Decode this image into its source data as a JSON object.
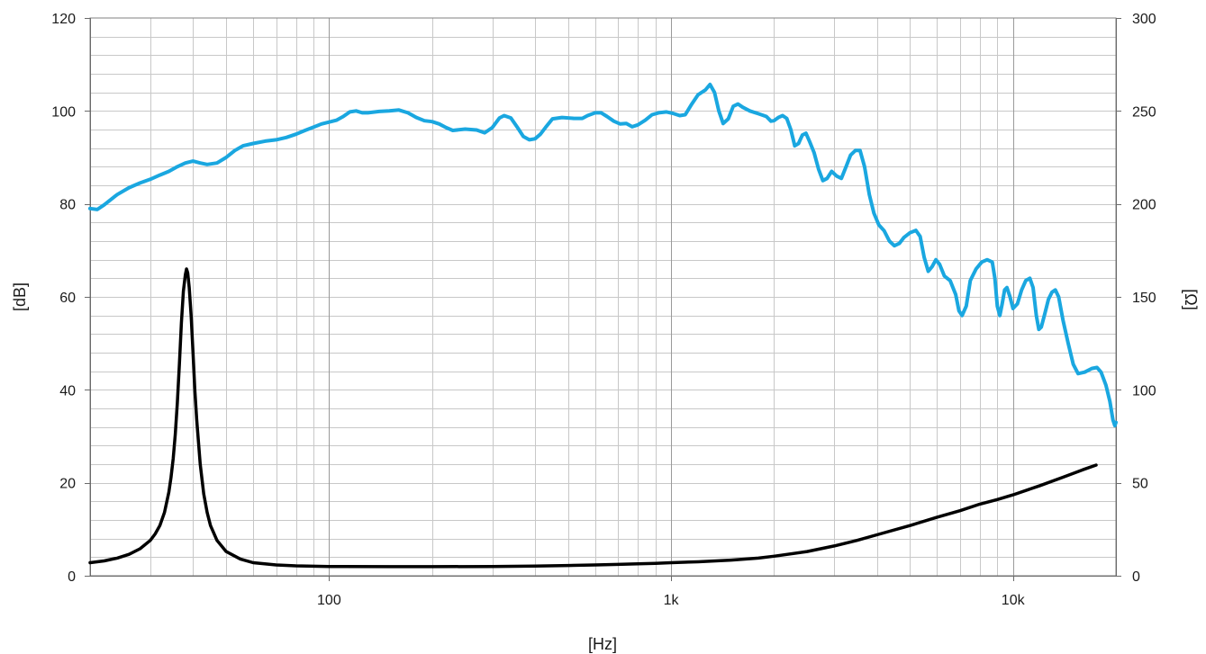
{
  "chart_data": {
    "type": "line",
    "x_scale": "log",
    "xlim": [
      20,
      20000
    ],
    "ylim_left": [
      0,
      120
    ],
    "ylim_right": [
      0,
      300
    ],
    "grid": true,
    "xlabel": "[Hz]",
    "ylabel_left": "[dB]",
    "ylabel_right": "[Ω]",
    "x_ticks": [
      {
        "v": 100,
        "label": "100"
      },
      {
        "v": 1000,
        "label": "1k"
      },
      {
        "v": 10000,
        "label": "10k"
      }
    ],
    "y_ticks_left": [
      0,
      20,
      40,
      60,
      80,
      100,
      120
    ],
    "y_ticks_right": [
      0,
      50,
      100,
      150,
      200,
      250,
      300
    ],
    "series": [
      {
        "axis": "left",
        "color": "#1aa7e0",
        "points": [
          [
            20,
            79.0
          ],
          [
            21,
            78.8
          ],
          [
            22,
            79.8
          ],
          [
            24,
            82.0
          ],
          [
            26,
            83.5
          ],
          [
            28,
            84.5
          ],
          [
            30,
            85.3
          ],
          [
            32,
            86.2
          ],
          [
            34,
            87.0
          ],
          [
            36,
            88.0
          ],
          [
            38,
            88.8
          ],
          [
            40,
            89.2
          ],
          [
            42,
            88.8
          ],
          [
            44,
            88.5
          ],
          [
            47,
            88.8
          ],
          [
            50,
            90.0
          ],
          [
            53,
            91.5
          ],
          [
            56,
            92.5
          ],
          [
            60,
            93.0
          ],
          [
            65,
            93.5
          ],
          [
            70,
            93.8
          ],
          [
            75,
            94.3
          ],
          [
            80,
            95.0
          ],
          [
            85,
            95.8
          ],
          [
            90,
            96.5
          ],
          [
            95,
            97.2
          ],
          [
            100,
            97.6
          ],
          [
            105,
            98.0
          ],
          [
            110,
            98.8
          ],
          [
            115,
            99.8
          ],
          [
            120,
            100.0
          ],
          [
            125,
            99.6
          ],
          [
            130,
            99.6
          ],
          [
            140,
            99.9
          ],
          [
            150,
            100.0
          ],
          [
            160,
            100.2
          ],
          [
            170,
            99.6
          ],
          [
            180,
            98.6
          ],
          [
            190,
            97.9
          ],
          [
            200,
            97.7
          ],
          [
            210,
            97.2
          ],
          [
            220,
            96.4
          ],
          [
            230,
            95.8
          ],
          [
            250,
            96.1
          ],
          [
            270,
            95.9
          ],
          [
            285,
            95.3
          ],
          [
            300,
            96.4
          ],
          [
            315,
            98.5
          ],
          [
            325,
            99.0
          ],
          [
            340,
            98.5
          ],
          [
            355,
            96.5
          ],
          [
            370,
            94.5
          ],
          [
            385,
            93.8
          ],
          [
            400,
            94.0
          ],
          [
            415,
            95.0
          ],
          [
            430,
            96.5
          ],
          [
            450,
            98.3
          ],
          [
            480,
            98.6
          ],
          [
            520,
            98.4
          ],
          [
            550,
            98.4
          ],
          [
            570,
            99.0
          ],
          [
            600,
            99.6
          ],
          [
            625,
            99.6
          ],
          [
            650,
            98.8
          ],
          [
            680,
            97.8
          ],
          [
            710,
            97.2
          ],
          [
            740,
            97.3
          ],
          [
            770,
            96.6
          ],
          [
            800,
            97.0
          ],
          [
            840,
            98.0
          ],
          [
            880,
            99.2
          ],
          [
            920,
            99.6
          ],
          [
            970,
            99.8
          ],
          [
            1010,
            99.5
          ],
          [
            1060,
            99.0
          ],
          [
            1100,
            99.2
          ],
          [
            1150,
            101.5
          ],
          [
            1200,
            103.5
          ],
          [
            1260,
            104.5
          ],
          [
            1300,
            105.7
          ],
          [
            1340,
            104.0
          ],
          [
            1380,
            100.0
          ],
          [
            1420,
            97.3
          ],
          [
            1470,
            98.3
          ],
          [
            1520,
            101.0
          ],
          [
            1570,
            101.5
          ],
          [
            1620,
            100.8
          ],
          [
            1700,
            100.0
          ],
          [
            1800,
            99.4
          ],
          [
            1900,
            98.8
          ],
          [
            1960,
            97.8
          ],
          [
            2000,
            97.9
          ],
          [
            2060,
            98.6
          ],
          [
            2120,
            99.0
          ],
          [
            2180,
            98.4
          ],
          [
            2240,
            96.0
          ],
          [
            2300,
            92.5
          ],
          [
            2360,
            93.0
          ],
          [
            2420,
            94.8
          ],
          [
            2480,
            95.2
          ],
          [
            2540,
            93.5
          ],
          [
            2620,
            91.0
          ],
          [
            2700,
            87.5
          ],
          [
            2780,
            85.0
          ],
          [
            2860,
            85.5
          ],
          [
            2950,
            87.0
          ],
          [
            3050,
            86.0
          ],
          [
            3150,
            85.5
          ],
          [
            3250,
            88.0
          ],
          [
            3350,
            90.5
          ],
          [
            3460,
            91.5
          ],
          [
            3570,
            91.5
          ],
          [
            3680,
            88.0
          ],
          [
            3800,
            82.0
          ],
          [
            3920,
            78.0
          ],
          [
            4050,
            75.5
          ],
          [
            4200,
            74.2
          ],
          [
            4350,
            72.0
          ],
          [
            4500,
            71.0
          ],
          [
            4650,
            71.5
          ],
          [
            4800,
            72.8
          ],
          [
            5000,
            73.8
          ],
          [
            5200,
            74.3
          ],
          [
            5350,
            73.0
          ],
          [
            5500,
            68.5
          ],
          [
            5650,
            65.5
          ],
          [
            5800,
            66.5
          ],
          [
            5950,
            68.0
          ],
          [
            6100,
            67.0
          ],
          [
            6300,
            64.5
          ],
          [
            6550,
            63.5
          ],
          [
            6800,
            60.5
          ],
          [
            6950,
            57.0
          ],
          [
            7100,
            56.0
          ],
          [
            7300,
            58.0
          ],
          [
            7500,
            63.5
          ],
          [
            7800,
            66.0
          ],
          [
            8100,
            67.5
          ],
          [
            8400,
            68.0
          ],
          [
            8700,
            67.5
          ],
          [
            8850,
            64.0
          ],
          [
            9000,
            58.0
          ],
          [
            9150,
            56.0
          ],
          [
            9300,
            58.5
          ],
          [
            9450,
            61.5
          ],
          [
            9600,
            62.0
          ],
          [
            9800,
            60.0
          ],
          [
            10000,
            57.5
          ],
          [
            10300,
            58.5
          ],
          [
            10600,
            61.5
          ],
          [
            10900,
            63.5
          ],
          [
            11200,
            64.0
          ],
          [
            11450,
            62.0
          ],
          [
            11700,
            56.0
          ],
          [
            11900,
            53.0
          ],
          [
            12100,
            53.5
          ],
          [
            12400,
            56.5
          ],
          [
            12700,
            59.5
          ],
          [
            13000,
            61.0
          ],
          [
            13300,
            61.5
          ],
          [
            13600,
            60.0
          ],
          [
            14000,
            55.0
          ],
          [
            14500,
            50.0
          ],
          [
            15000,
            45.5
          ],
          [
            15500,
            43.5
          ],
          [
            16200,
            43.8
          ],
          [
            17000,
            44.6
          ],
          [
            17600,
            44.8
          ],
          [
            18100,
            43.8
          ],
          [
            18700,
            41.0
          ],
          [
            19200,
            37.5
          ],
          [
            19600,
            33.5
          ],
          [
            19850,
            32.3
          ],
          [
            20000,
            33.0
          ]
        ]
      },
      {
        "axis": "right",
        "color": "#000000",
        "points": [
          [
            20,
            7.0
          ],
          [
            22,
            8.0
          ],
          [
            24,
            9.5
          ],
          [
            26,
            11.5
          ],
          [
            28,
            14.5
          ],
          [
            30,
            19.0
          ],
          [
            31,
            22.5
          ],
          [
            32,
            27.0
          ],
          [
            33,
            34.0
          ],
          [
            34,
            45.0
          ],
          [
            34.5,
            53.0
          ],
          [
            35,
            63.0
          ],
          [
            35.5,
            76.0
          ],
          [
            36,
            93.0
          ],
          [
            36.5,
            114.0
          ],
          [
            37,
            136.0
          ],
          [
            37.5,
            153.0
          ],
          [
            38,
            162.0
          ],
          [
            38.3,
            165.0
          ],
          [
            38.6,
            163.0
          ],
          [
            39,
            155.0
          ],
          [
            39.5,
            140.0
          ],
          [
            40,
            120.0
          ],
          [
            40.5,
            100.0
          ],
          [
            41,
            84.0
          ],
          [
            42,
            60.0
          ],
          [
            43,
            44.0
          ],
          [
            44,
            34.0
          ],
          [
            45,
            27.0
          ],
          [
            47,
            19.0
          ],
          [
            50,
            13.0
          ],
          [
            55,
            9.0
          ],
          [
            60,
            7.0
          ],
          [
            70,
            5.8
          ],
          [
            80,
            5.3
          ],
          [
            100,
            5.0
          ],
          [
            150,
            4.9
          ],
          [
            200,
            4.9
          ],
          [
            300,
            5.0
          ],
          [
            400,
            5.2
          ],
          [
            500,
            5.5
          ],
          [
            600,
            5.8
          ],
          [
            700,
            6.1
          ],
          [
            800,
            6.4
          ],
          [
            900,
            6.7
          ],
          [
            1000,
            7.0
          ],
          [
            1200,
            7.5
          ],
          [
            1500,
            8.4
          ],
          [
            1800,
            9.5
          ],
          [
            2000,
            10.5
          ],
          [
            2500,
            13.0
          ],
          [
            3000,
            16.0
          ],
          [
            3500,
            19.0
          ],
          [
            4000,
            22.0
          ],
          [
            5000,
            27.0
          ],
          [
            6000,
            31.5
          ],
          [
            7000,
            35.0
          ],
          [
            8000,
            38.5
          ],
          [
            9000,
            41.0
          ],
          [
            10000,
            43.5
          ],
          [
            12000,
            48.5
          ],
          [
            14000,
            53.0
          ],
          [
            16000,
            57.0
          ],
          [
            17500,
            59.5
          ]
        ]
      }
    ]
  }
}
